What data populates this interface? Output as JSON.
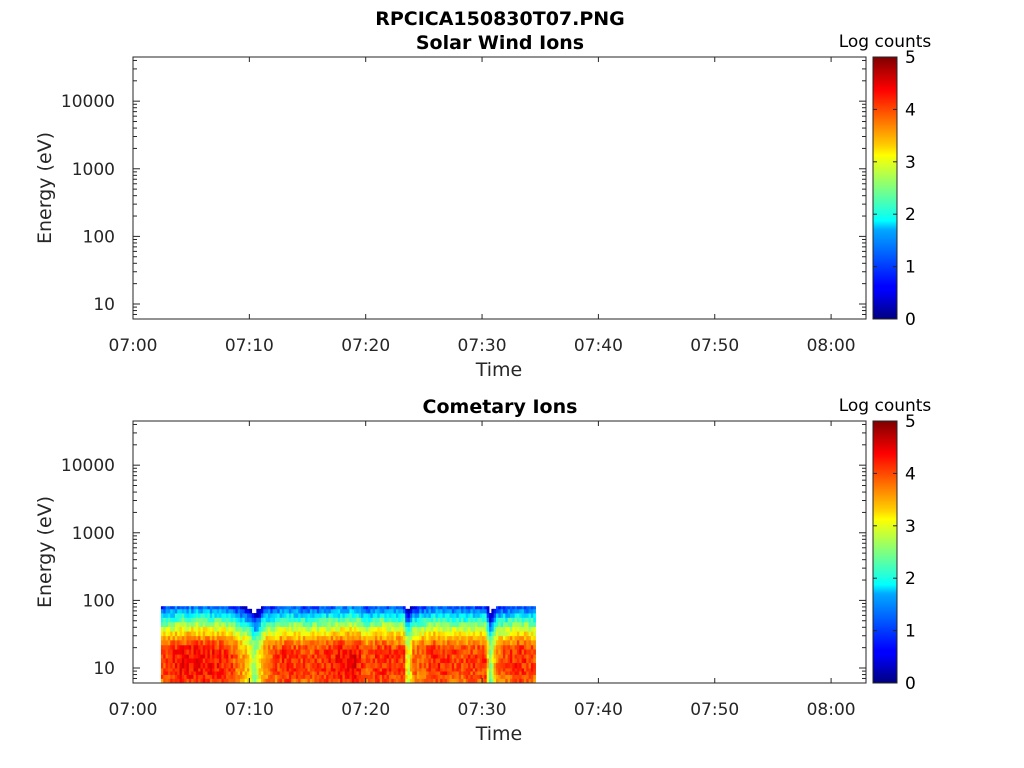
{
  "figure_title": "RPCICA150830T07.PNG",
  "chart_data": [
    {
      "type": "heatmap",
      "title": "Solar Wind Ions",
      "xlabel": "Time",
      "ylabel": "Energy (eV)",
      "x_ticks": [
        "07:00",
        "07:10",
        "07:20",
        "07:30",
        "07:40",
        "07:50",
        "08:00"
      ],
      "y_ticks": [
        "10",
        "100",
        "1000",
        "10000"
      ],
      "y_scale": "log",
      "xlim_minutes": [
        0,
        63
      ],
      "ylim": [
        6,
        45000
      ],
      "colorbar": {
        "label": "Log counts",
        "ticks": [
          "0",
          "1",
          "2",
          "3",
          "4",
          "5"
        ],
        "range": [
          0,
          5
        ],
        "colormap": "jet"
      },
      "data": []
    },
    {
      "type": "heatmap",
      "title": "Cometary Ions",
      "xlabel": "Time",
      "ylabel": "Energy (eV)",
      "x_ticks": [
        "07:00",
        "07:10",
        "07:20",
        "07:30",
        "07:40",
        "07:50",
        "08:00"
      ],
      "y_ticks": [
        "10",
        "100",
        "1000",
        "10000"
      ],
      "y_scale": "log",
      "xlim_minutes": [
        0,
        63
      ],
      "ylim": [
        6,
        45000
      ],
      "colorbar": {
        "label": "Log counts",
        "ticks": [
          "0",
          "1",
          "2",
          "3",
          "4",
          "5"
        ],
        "range": [
          0,
          5
        ],
        "colormap": "jet"
      },
      "data_time_range_minutes": [
        2.4,
        34.6
      ],
      "data_energy_range_ev": [
        6,
        82
      ],
      "energy_levels_ev": [
        6,
        7,
        8,
        9,
        10,
        12,
        14,
        16,
        19,
        22,
        26,
        30,
        35,
        41,
        48,
        56,
        65,
        75,
        82
      ],
      "profile": [
        {
          "t": 2.4,
          "peak": 4.0
        },
        {
          "t": 4.0,
          "peak": 4.3
        },
        {
          "t": 6.0,
          "peak": 4.3
        },
        {
          "t": 8.0,
          "peak": 4.2
        },
        {
          "t": 9.8,
          "peak": 3.4
        },
        {
          "t": 10.4,
          "peak": 2.6
        },
        {
          "t": 11.2,
          "peak": 3.8
        },
        {
          "t": 13.0,
          "peak": 4.2
        },
        {
          "t": 15.0,
          "peak": 4.0
        },
        {
          "t": 17.0,
          "peak": 4.2
        },
        {
          "t": 19.0,
          "peak": 4.4
        },
        {
          "t": 20.0,
          "peak": 3.9
        },
        {
          "t": 21.0,
          "peak": 4.2
        },
        {
          "t": 23.2,
          "peak": 4.1
        },
        {
          "t": 23.5,
          "peak": 2.8
        },
        {
          "t": 24.0,
          "peak": 3.8
        },
        {
          "t": 26.0,
          "peak": 4.2
        },
        {
          "t": 28.0,
          "peak": 4.0
        },
        {
          "t": 30.2,
          "peak": 4.1
        },
        {
          "t": 30.6,
          "peak": 2.6
        },
        {
          "t": 31.2,
          "peak": 3.8
        },
        {
          "t": 33.0,
          "peak": 4.2
        },
        {
          "t": 34.6,
          "peak": 4.0
        }
      ]
    }
  ]
}
